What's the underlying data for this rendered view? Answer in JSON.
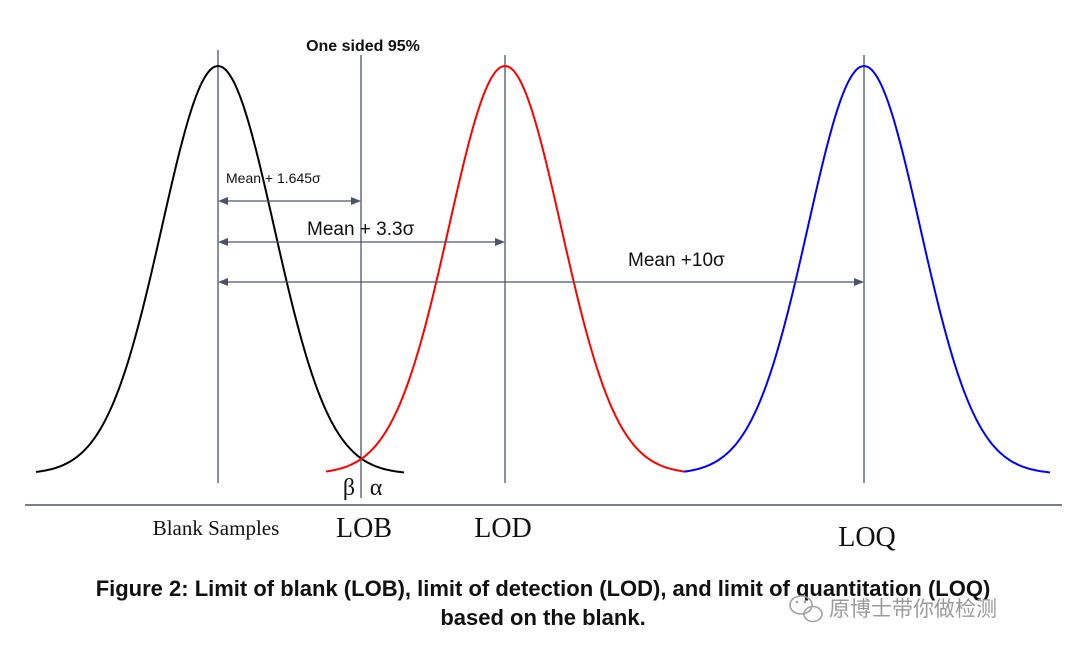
{
  "figure": {
    "top_label": "One sided 95%",
    "arrows": {
      "lob": "Mean + 1.645σ",
      "lod": "Mean + 3.3σ",
      "loq": "Mean +10σ"
    },
    "greek": {
      "beta": "β",
      "alpha": "α"
    },
    "axis_labels": {
      "blank": "Blank Samples",
      "lob": "LOB",
      "lod": "LOD",
      "loq": "LOQ"
    },
    "curve_colors": {
      "blank": "#000000",
      "lod": "#ff0000",
      "loq": "#0000ff",
      "lines": "#4b5468"
    }
  },
  "caption": {
    "line1": "Figure 2: Limit of blank (LOB), limit of detection (LOD), and limit of quantitation (LOQ)",
    "line2": "based on the blank."
  },
  "watermark": {
    "text": "原博士带你做检测"
  }
}
